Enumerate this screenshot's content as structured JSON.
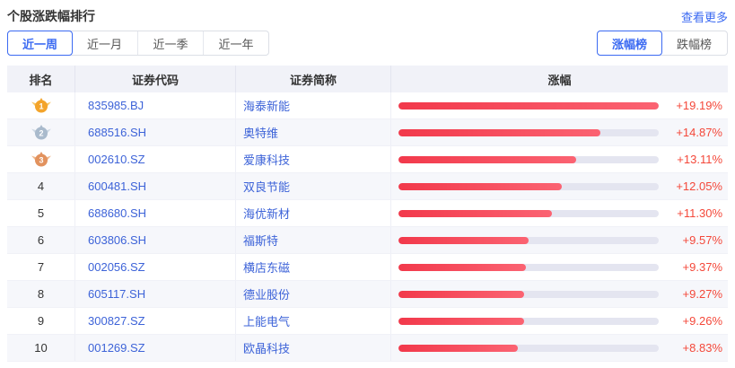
{
  "panel": {
    "title": "个股涨跌幅排行",
    "more_link": "查看更多"
  },
  "period_tabs": [
    {
      "label": "近一周",
      "selected": true
    },
    {
      "label": "近一月",
      "selected": false
    },
    {
      "label": "近一季",
      "selected": false
    },
    {
      "label": "近一年",
      "selected": false
    }
  ],
  "board_tabs": [
    {
      "label": "涨幅榜",
      "selected": true
    },
    {
      "label": "跌幅榜",
      "selected": false
    }
  ],
  "table": {
    "columns": [
      "排名",
      "证券代码",
      "证券简称",
      "涨幅"
    ],
    "bar_max_pct": 19.19,
    "rows": [
      {
        "rank": 1,
        "medal": "gold",
        "code": "835985.BJ",
        "name": "海泰新能",
        "change_label": "+19.19%",
        "change_pct": 19.19
      },
      {
        "rank": 2,
        "medal": "silver",
        "code": "688516.SH",
        "name": "奥特维",
        "change_label": "+14.87%",
        "change_pct": 14.87
      },
      {
        "rank": 3,
        "medal": "bronze",
        "code": "002610.SZ",
        "name": "爱康科技",
        "change_label": "+13.11%",
        "change_pct": 13.11
      },
      {
        "rank": 4,
        "medal": null,
        "code": "600481.SH",
        "name": "双良节能",
        "change_label": "+12.05%",
        "change_pct": 12.05
      },
      {
        "rank": 5,
        "medal": null,
        "code": "688680.SH",
        "name": "海优新材",
        "change_label": "+11.30%",
        "change_pct": 11.3
      },
      {
        "rank": 6,
        "medal": null,
        "code": "603806.SH",
        "name": "福斯特",
        "change_label": "+9.57%",
        "change_pct": 9.57
      },
      {
        "rank": 7,
        "medal": null,
        "code": "002056.SZ",
        "name": "横店东磁",
        "change_label": "+9.37%",
        "change_pct": 9.37
      },
      {
        "rank": 8,
        "medal": null,
        "code": "605117.SH",
        "name": "德业股份",
        "change_label": "+9.27%",
        "change_pct": 9.27
      },
      {
        "rank": 9,
        "medal": null,
        "code": "300827.SZ",
        "name": "上能电气",
        "change_label": "+9.26%",
        "change_pct": 9.26
      },
      {
        "rank": 10,
        "medal": null,
        "code": "001269.SZ",
        "name": "欧晶科技",
        "change_label": "+8.83%",
        "change_pct": 8.83
      }
    ]
  },
  "colors": {
    "accent_blue": "#3b6af2",
    "link_blue": "#3d63d8",
    "change_red": "#f4483a",
    "bar_gradient_start": "#f2394b",
    "bar_gradient_end": "#fb6372",
    "bar_track": "#e4e5f0",
    "header_bg": "#f1f2f8",
    "row_alt_bg": "#f6f7fb",
    "medal_gold": "#f3a42b",
    "medal_silver": "#a9bacc",
    "medal_bronze": "#e2925e"
  }
}
